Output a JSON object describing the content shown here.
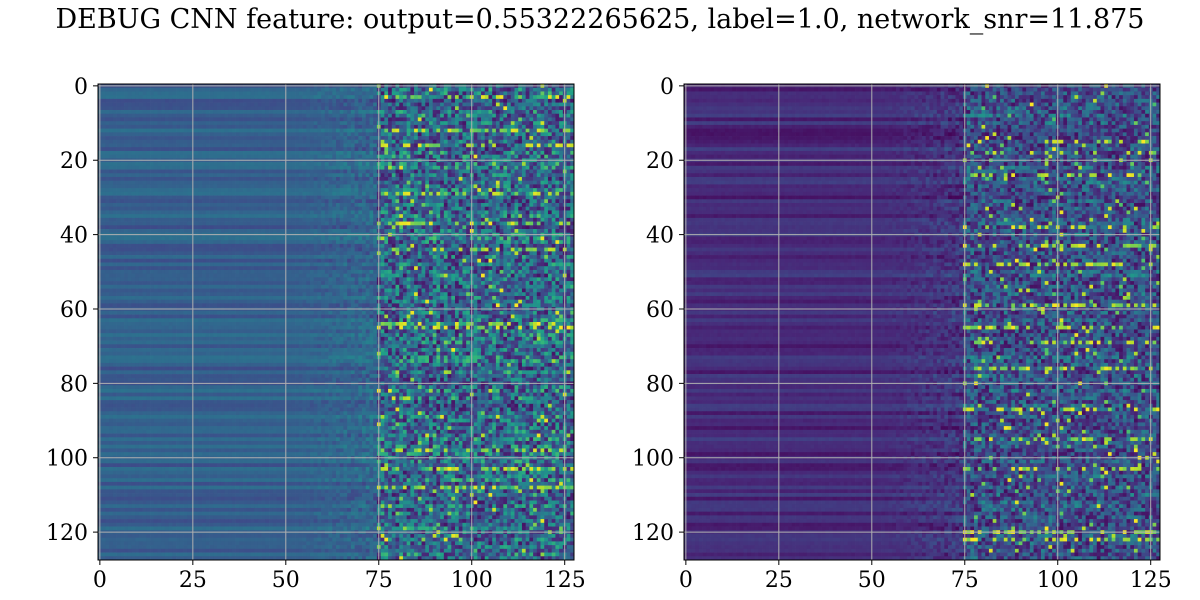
{
  "chart_data": {
    "title": "DEBUG CNN feature: output=0.55322265625, label=1.0, network_snr=11.875",
    "type": "heatmap",
    "colormap": "viridis",
    "grid": true,
    "panels": [
      {
        "name": "",
        "rows": 128,
        "cols": 128,
        "xticks": [
          0,
          25,
          50,
          75,
          100,
          125
        ],
        "yticks": [
          0,
          20,
          40,
          60,
          80,
          100,
          120
        ],
        "xlim": [
          -0.5,
          127.5
        ],
        "ylim": [
          127.5,
          -0.5
        ],
        "value_range": [
          0,
          1
        ],
        "description_profile": {
          "left_block_cols": [
            0,
            50
          ],
          "left_level": 0.3,
          "noisy_from_col": 75,
          "noise_level": 0.35,
          "bright_rows": [
            3,
            12,
            16,
            29,
            37,
            44,
            64,
            65,
            98,
            103,
            108
          ]
        }
      },
      {
        "name": "",
        "rows": 128,
        "cols": 128,
        "xticks": [
          0,
          25,
          50,
          75,
          100,
          125
        ],
        "yticks": [
          0,
          20,
          40,
          60,
          80,
          100,
          120
        ],
        "xlim": [
          -0.5,
          127.5
        ],
        "ylim": [
          127.5,
          -0.5
        ],
        "value_range": [
          0,
          1
        ],
        "description_profile": {
          "left_block_cols": [
            0,
            50
          ],
          "left_level": 0.12,
          "noisy_from_col": 75,
          "noise_level": 0.25,
          "bright_rows": [
            15,
            18,
            24,
            38,
            43,
            48,
            59,
            65,
            69,
            76,
            87,
            95,
            103,
            120,
            122
          ]
        }
      }
    ]
  }
}
